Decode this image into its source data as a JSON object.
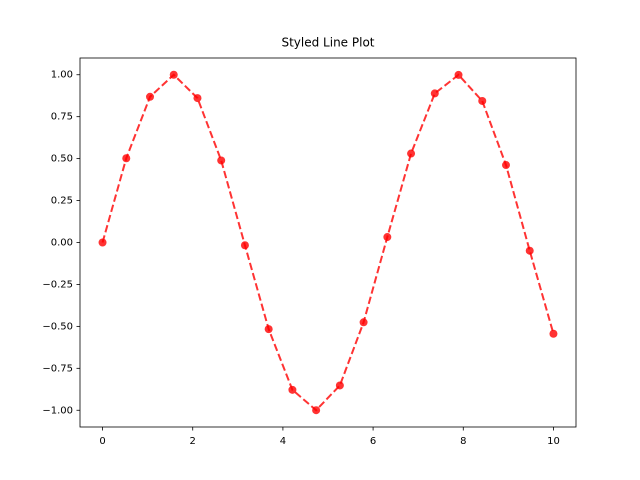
{
  "chart_data": {
    "type": "line",
    "title": "Styled Line Plot",
    "x": [
      0,
      0.5263,
      1.0526,
      1.5789,
      2.1053,
      2.6316,
      3.1579,
      3.6842,
      4.2105,
      4.7368,
      5.2632,
      5.7895,
      6.3158,
      6.8421,
      7.3684,
      7.8947,
      8.4211,
      8.9474,
      9.4737,
      10
    ],
    "values": [
      0,
      0.5022,
      0.8685,
      1.0,
      0.8608,
      0.4889,
      -0.0163,
      -0.5163,
      -0.8782,
      -0.9997,
      -0.8521,
      -0.4755,
      0.0326,
      0.5303,
      0.8888,
      0.9991,
      0.8436,
      0.4618,
      -0.0489,
      -0.544
    ],
    "color": "#ff0000",
    "xlim": [
      -0.5,
      10.5
    ],
    "xticks": [
      0,
      2,
      4,
      6,
      8,
      10
    ],
    "ylim": [
      -1.0998,
      1.0998
    ],
    "yticks": [
      {
        "value": -1,
        "label": "−1.00"
      },
      {
        "value": -0.75,
        "label": "−0.75"
      },
      {
        "value": -0.5,
        "label": "−0.50"
      },
      {
        "value": -0.25,
        "label": "−0.25"
      },
      {
        "value": 0,
        "label": "0.00"
      },
      {
        "value": 0.25,
        "label": "0.25"
      },
      {
        "value": 0.5,
        "label": "0.50"
      },
      {
        "value": 0.75,
        "label": "0.75"
      },
      {
        "value": 1,
        "label": "1.00"
      }
    ]
  }
}
